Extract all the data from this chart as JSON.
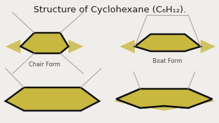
{
  "bg_color": "#f0eeea",
  "gold": "#c8b840",
  "lc": "#111111",
  "tc": "#aaaaaa",
  "lw_thick": 1.8,
  "lw_thin": 0.85,
  "label_chair": "Chair Form",
  "label_boat": "Boat Form",
  "label_fs": 6.0,
  "title_fs": 9.5,
  "title_text": "Structure of Cyclohexane (C₆H₁₂)."
}
